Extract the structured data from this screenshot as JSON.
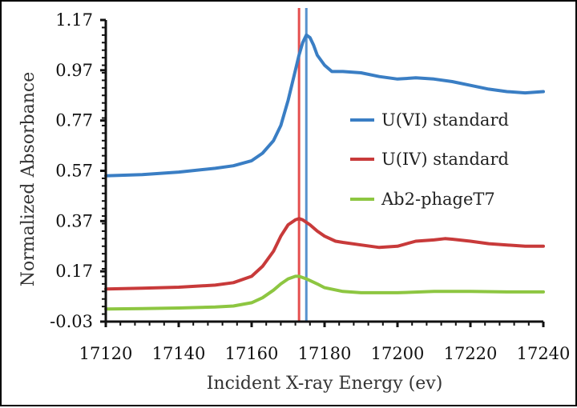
{
  "chart_data": {
    "type": "line",
    "xlabel": "Incident X-ray Energy (ev)",
    "ylabel": "Normalized Absorbance",
    "xlim": [
      17120,
      17240
    ],
    "ylim": [
      -0.03,
      1.17
    ],
    "x_ticks": [
      "17120",
      "17140",
      "17160",
      "17180",
      "17200",
      "17220",
      "17240"
    ],
    "y_ticks": [
      "-0.03",
      "0.17",
      "0.37",
      "0.57",
      "0.77",
      "0.97",
      "1.17"
    ],
    "grid": false,
    "legend": "right",
    "series": [
      {
        "name": "U(VI) standard",
        "color": "#3a7ec4",
        "x": [
          17120,
          17130,
          17140,
          17150,
          17155,
          17160,
          17163,
          17166,
          17168,
          17170,
          17172,
          17173,
          17174,
          17175,
          17176,
          17177,
          17178,
          17180,
          17182,
          17185,
          17190,
          17195,
          17200,
          17205,
          17210,
          17215,
          17220,
          17225,
          17230,
          17235,
          17240
        ],
        "values": [
          0.55,
          0.555,
          0.565,
          0.58,
          0.59,
          0.61,
          0.64,
          0.69,
          0.75,
          0.85,
          0.97,
          1.03,
          1.08,
          1.11,
          1.1,
          1.07,
          1.03,
          0.99,
          0.965,
          0.965,
          0.96,
          0.945,
          0.935,
          0.94,
          0.935,
          0.925,
          0.91,
          0.895,
          0.885,
          0.88,
          0.885
        ]
      },
      {
        "name": "U(IV) standard",
        "color": "#c83a3a",
        "x": [
          17120,
          17130,
          17140,
          17150,
          17155,
          17160,
          17163,
          17166,
          17168,
          17170,
          17172,
          17173,
          17174,
          17176,
          17178,
          17180,
          17183,
          17185,
          17190,
          17195,
          17200,
          17205,
          17210,
          17213,
          17215,
          17220,
          17225,
          17230,
          17235,
          17240
        ],
        "values": [
          0.1,
          0.103,
          0.107,
          0.115,
          0.125,
          0.15,
          0.19,
          0.25,
          0.31,
          0.355,
          0.375,
          0.38,
          0.375,
          0.355,
          0.33,
          0.31,
          0.29,
          0.285,
          0.275,
          0.265,
          0.27,
          0.29,
          0.295,
          0.3,
          0.298,
          0.29,
          0.28,
          0.275,
          0.27,
          0.27
        ]
      },
      {
        "name": "Ab2-phageT7",
        "color": "#8dc641",
        "x": [
          17120,
          17130,
          17140,
          17150,
          17155,
          17160,
          17163,
          17166,
          17168,
          17170,
          17172,
          17173,
          17175,
          17178,
          17180,
          17185,
          17190,
          17200,
          17210,
          17220,
          17230,
          17240
        ],
        "values": [
          0.02,
          0.022,
          0.024,
          0.028,
          0.032,
          0.045,
          0.065,
          0.095,
          0.12,
          0.14,
          0.15,
          0.15,
          0.14,
          0.12,
          0.105,
          0.09,
          0.085,
          0.085,
          0.09,
          0.09,
          0.088,
          0.088
        ]
      }
    ],
    "vertical_lines": [
      {
        "x": 17173,
        "color": "#e03030"
      },
      {
        "x": 17175,
        "color": "#3a7ec4"
      }
    ]
  }
}
